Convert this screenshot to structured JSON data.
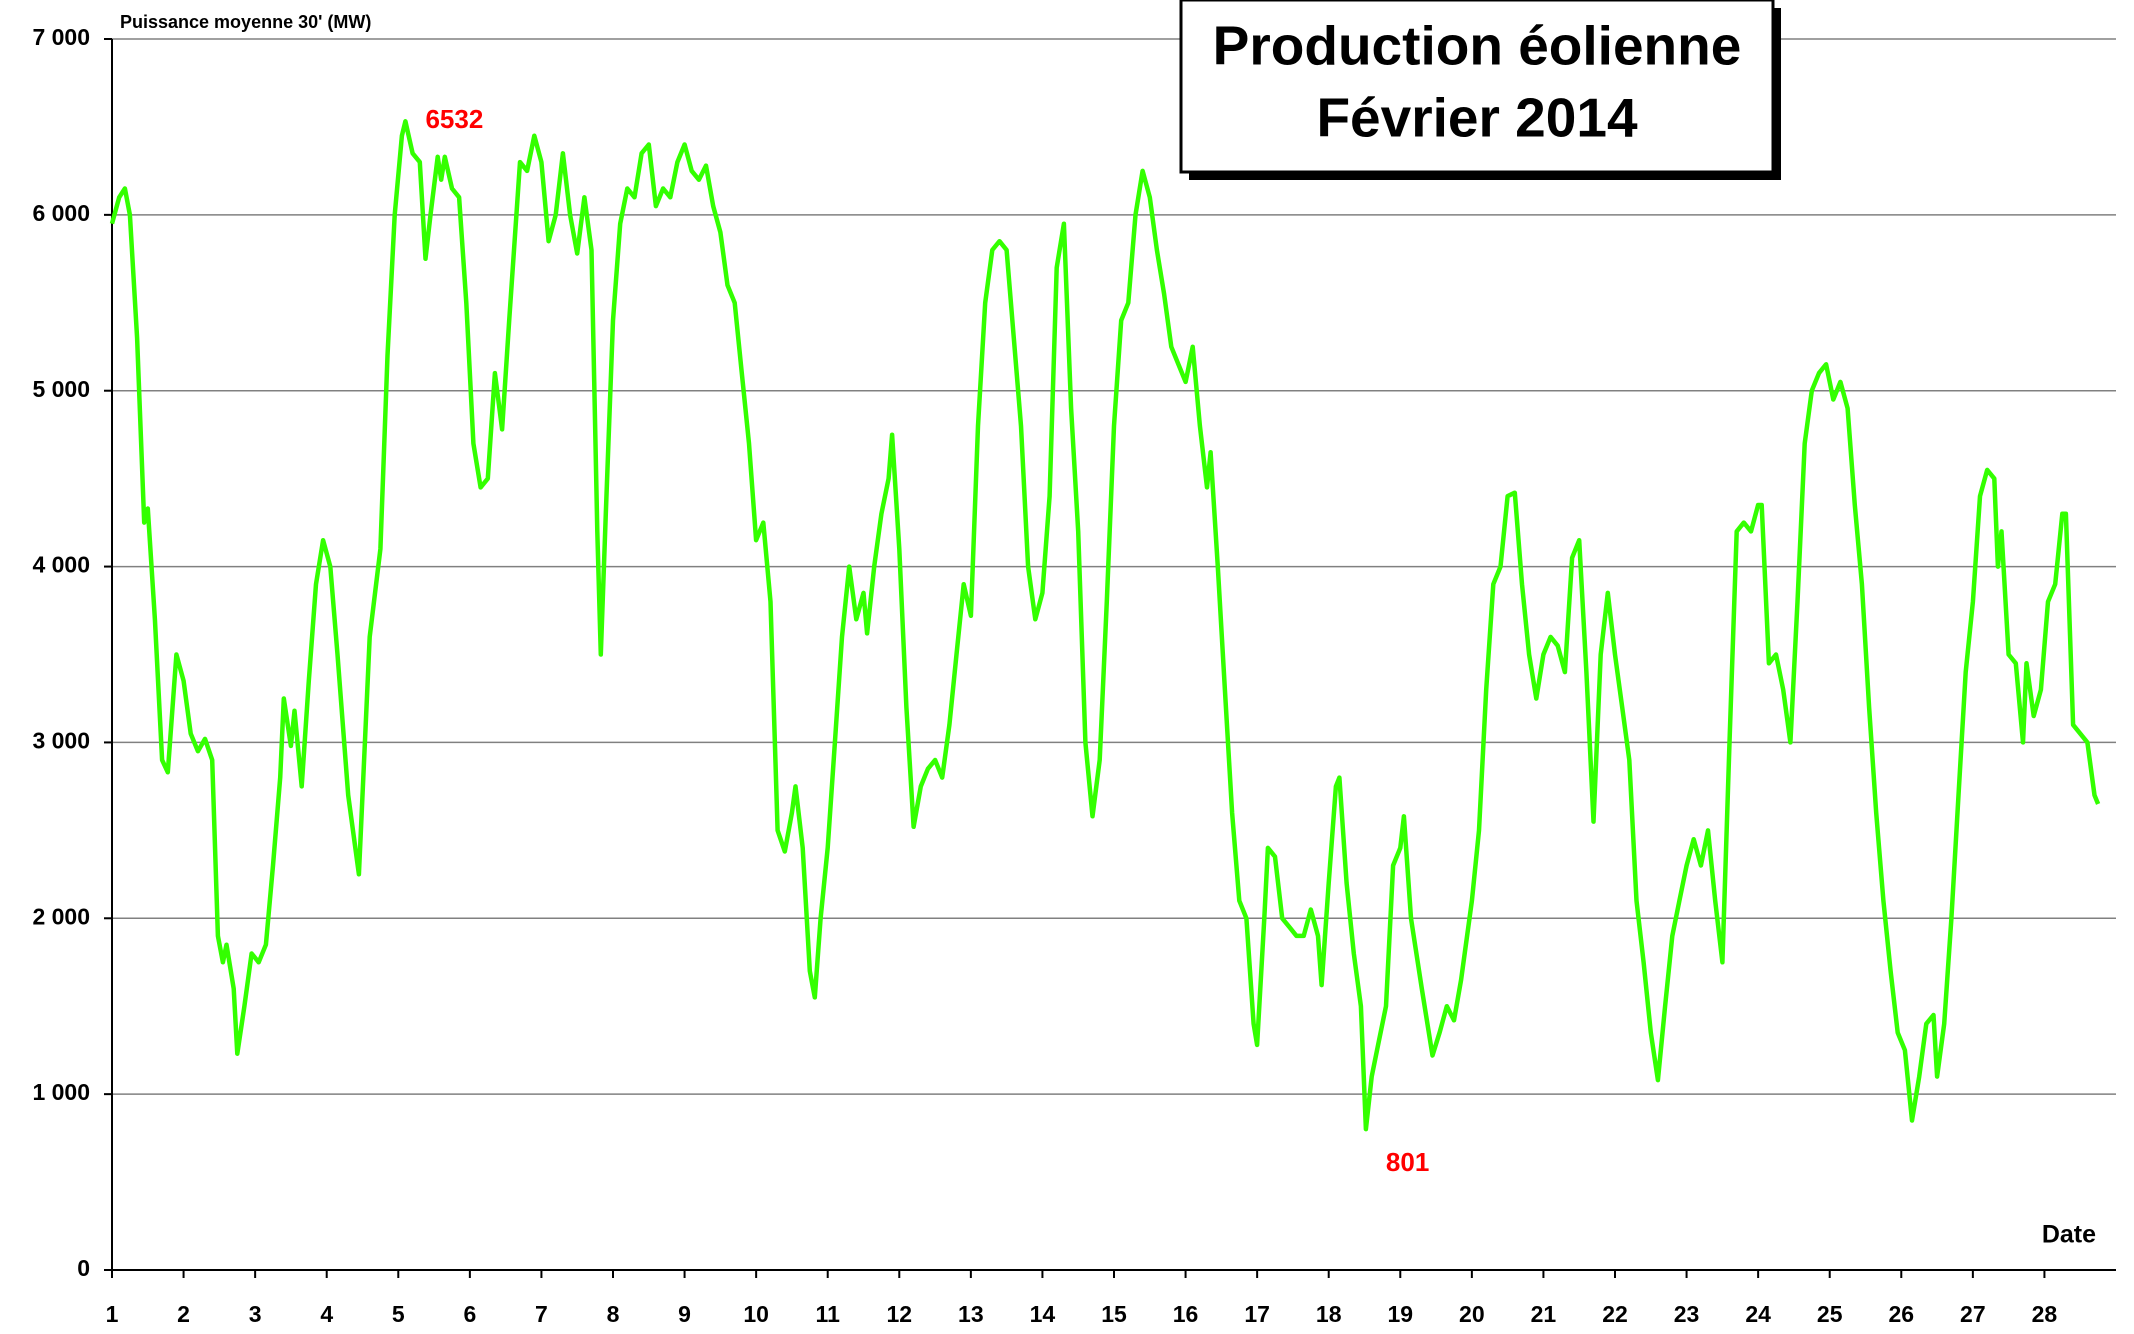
{
  "chart_data": {
    "type": "line",
    "title": "Production éolienne",
    "subtitle": "Février 2014",
    "y_label": "Puissance moyenne 30'  (MW)",
    "x_label": "Date",
    "xlim": [
      1,
      29
    ],
    "xticks": [
      1,
      2,
      3,
      4,
      5,
      6,
      7,
      8,
      9,
      10,
      11,
      12,
      13,
      14,
      15,
      16,
      17,
      18,
      19,
      20,
      21,
      22,
      23,
      24,
      25,
      26,
      27,
      28
    ],
    "ylim": [
      0,
      7000
    ],
    "yticks": [
      0,
      {
        "value": 1000,
        "label": "1 000"
      },
      {
        "value": 2000,
        "label": "2 000"
      },
      {
        "value": 3000,
        "label": "3 000"
      },
      {
        "value": 4000,
        "label": "4 000"
      },
      {
        "value": 5000,
        "label": "5 000"
      },
      {
        "value": 6000,
        "label": "6 000"
      },
      {
        "value": 7000,
        "label": "7 000"
      }
    ],
    "grid": true,
    "annotations": [
      {
        "text": "6532",
        "x": 5.1,
        "y": 6532,
        "color": "#ff0000"
      },
      {
        "text": "801",
        "x": 18.52,
        "y": 801,
        "color": "#ff0000"
      }
    ],
    "series": [
      {
        "color": "#33ff00",
        "x": [
          1.0,
          1.1,
          1.18,
          1.25,
          1.35,
          1.45,
          1.5,
          1.6,
          1.7,
          1.78,
          1.9,
          2.0,
          2.1,
          2.2,
          2.3,
          2.4,
          2.48,
          2.55,
          2.6,
          2.7,
          2.75,
          2.85,
          2.95,
          3.05,
          3.15,
          3.25,
          3.35,
          3.4,
          3.5,
          3.55,
          3.65,
          3.75,
          3.85,
          3.95,
          4.05,
          4.15,
          4.3,
          4.45,
          4.6,
          4.75,
          4.85,
          4.95,
          5.05,
          5.1,
          5.2,
          5.3,
          5.38,
          5.45,
          5.55,
          5.6,
          5.65,
          5.75,
          5.85,
          5.95,
          6.05,
          6.15,
          6.25,
          6.35,
          6.45,
          6.55,
          6.7,
          6.8,
          6.9,
          7.0,
          7.1,
          7.2,
          7.3,
          7.4,
          7.5,
          7.6,
          7.7,
          7.78,
          7.83,
          7.9,
          8.0,
          8.1,
          8.2,
          8.3,
          8.4,
          8.5,
          8.6,
          8.7,
          8.8,
          8.9,
          9.0,
          9.1,
          9.2,
          9.3,
          9.4,
          9.5,
          9.6,
          9.7,
          9.8,
          9.9,
          10.0,
          10.1,
          10.2,
          10.3,
          10.4,
          10.5,
          10.55,
          10.65,
          10.75,
          10.82,
          10.9,
          11.0,
          11.1,
          11.2,
          11.3,
          11.4,
          11.5,
          11.55,
          11.65,
          11.75,
          11.85,
          11.9,
          12.0,
          12.1,
          12.2,
          12.3,
          12.4,
          12.5,
          12.6,
          12.7,
          12.8,
          12.9,
          13.0,
          13.1,
          13.2,
          13.3,
          13.4,
          13.5,
          13.6,
          13.7,
          13.8,
          13.9,
          14.0,
          14.1,
          14.2,
          14.3,
          14.4,
          14.5,
          14.6,
          14.7,
          14.8,
          14.9,
          15.0,
          15.1,
          15.2,
          15.3,
          15.4,
          15.5,
          15.6,
          15.7,
          15.8,
          15.9,
          16.0,
          16.1,
          16.2,
          16.3,
          16.35,
          16.45,
          16.55,
          16.65,
          16.75,
          16.85,
          16.95,
          17.0,
          17.1,
          17.15,
          17.25,
          17.35,
          17.45,
          17.55,
          17.65,
          17.75,
          17.85,
          17.9,
          18.0,
          18.1,
          18.15,
          18.25,
          18.35,
          18.45,
          18.52,
          18.6,
          18.7,
          18.8,
          18.9,
          19.0,
          19.05,
          19.15,
          19.3,
          19.45,
          19.55,
          19.65,
          19.75,
          19.85,
          20.0,
          20.1,
          20.2,
          20.3,
          20.4,
          20.5,
          20.6,
          20.7,
          20.8,
          20.9,
          21.0,
          21.1,
          21.2,
          21.3,
          21.4,
          21.5,
          21.6,
          21.7,
          21.8,
          21.9,
          22.0,
          22.1,
          22.2,
          22.3,
          22.4,
          22.5,
          22.6,
          22.7,
          22.8,
          22.9,
          23.0,
          23.1,
          23.2,
          23.3,
          23.4,
          23.5,
          23.6,
          23.7,
          23.8,
          23.9,
          24.0,
          24.05,
          24.15,
          24.25,
          24.35,
          24.45,
          24.55,
          24.65,
          24.75,
          24.85,
          24.95,
          25.05,
          25.15,
          25.25,
          25.35,
          25.45,
          25.55,
          25.65,
          25.75,
          25.85,
          25.95,
          26.05,
          26.15,
          26.25,
          26.35,
          26.45,
          26.5,
          26.6,
          26.7,
          26.8,
          26.9,
          27.0,
          27.1,
          27.2,
          27.3,
          27.35,
          27.4,
          27.5,
          27.6,
          27.7,
          27.75,
          27.85,
          27.95,
          28.05,
          28.15,
          28.25,
          28.3,
          28.4,
          28.5,
          28.6,
          28.7,
          28.75
        ],
        "values": [
          5950,
          6100,
          6150,
          6000,
          5300,
          4250,
          4330,
          3700,
          2900,
          2830,
          3500,
          3350,
          3050,
          2950,
          3020,
          2900,
          1900,
          1750,
          1850,
          1600,
          1230,
          1500,
          1800,
          1750,
          1850,
          2300,
          2800,
          3250,
          2980,
          3180,
          2750,
          3350,
          3900,
          4150,
          4000,
          3500,
          2700,
          2250,
          3600,
          4100,
          5200,
          6000,
          6450,
          6532,
          6350,
          6300,
          5750,
          6000,
          6330,
          6200,
          6330,
          6150,
          6100,
          5500,
          4700,
          4450,
          4500,
          5100,
          4780,
          5400,
          6300,
          6250,
          6450,
          6300,
          5850,
          6000,
          6350,
          6000,
          5780,
          6100,
          5800,
          4200,
          3500,
          4300,
          5400,
          5950,
          6150,
          6100,
          6350,
          6400,
          6050,
          6150,
          6100,
          6300,
          6400,
          6250,
          6200,
          6280,
          6050,
          5900,
          5600,
          5500,
          5100,
          4700,
          4150,
          4250,
          3800,
          2500,
          2380,
          2600,
          2750,
          2400,
          1700,
          1550,
          2000,
          2400,
          3000,
          3600,
          4000,
          3700,
          3850,
          3620,
          4000,
          4300,
          4500,
          4750,
          4100,
          3200,
          2520,
          2750,
          2850,
          2900,
          2800,
          3100,
          3500,
          3900,
          3720,
          4800,
          5500,
          5800,
          5850,
          5800,
          5300,
          4800,
          4000,
          3700,
          3850,
          4400,
          5700,
          5950,
          4900,
          4200,
          3000,
          2580,
          2900,
          3800,
          4800,
          5400,
          5500,
          6000,
          6250,
          6100,
          5800,
          5550,
          5250,
          5150,
          5050,
          5250,
          4800,
          4450,
          4650,
          4000,
          3300,
          2600,
          2100,
          2000,
          1400,
          1280,
          2000,
          2400,
          2350,
          2000,
          1950,
          1900,
          1900,
          2050,
          1900,
          1620,
          2200,
          2750,
          2800,
          2200,
          1800,
          1500,
          801,
          1100,
          1300,
          1500,
          2300,
          2400,
          2580,
          2000,
          1600,
          1220,
          1350,
          1500,
          1420,
          1650,
          2100,
          2500,
          3300,
          3900,
          4000,
          4400,
          4420,
          3900,
          3500,
          3250,
          3500,
          3600,
          3550,
          3400,
          4050,
          4150,
          3400,
          2550,
          3500,
          3850,
          3500,
          3200,
          2900,
          2100,
          1750,
          1350,
          1080,
          1500,
          1900,
          2100,
          2300,
          2450,
          2300,
          2500,
          2100,
          1750,
          3000,
          4200,
          4250,
          4200,
          4350,
          4350,
          3450,
          3500,
          3300,
          3000,
          3800,
          4700,
          5000,
          5100,
          5150,
          4950,
          5050,
          4900,
          4350,
          3900,
          3200,
          2600,
          2100,
          1700,
          1350,
          1250,
          850,
          1100,
          1400,
          1450,
          1100,
          1400,
          2000,
          2700,
          3400,
          3800,
          4400,
          4550,
          4500,
          4000,
          4200,
          3500,
          3450,
          3000,
          3450,
          3150,
          3300,
          3800,
          3900,
          4300,
          4300,
          3100,
          3050,
          3000,
          2700,
          2650
        ]
      }
    ]
  }
}
